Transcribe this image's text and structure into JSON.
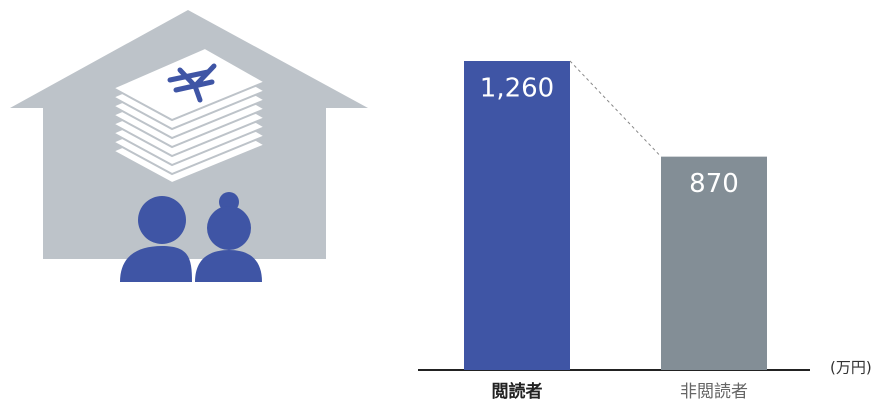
{
  "chart_data": {
    "type": "bar",
    "categories": [
      "閲読者",
      "非閲読者"
    ],
    "values": [
      1260,
      870
    ],
    "value_labels": [
      "1,260",
      "870"
    ],
    "colors": [
      "#3f55a5",
      "#838e96"
    ],
    "unit": "(万円)"
  }
}
